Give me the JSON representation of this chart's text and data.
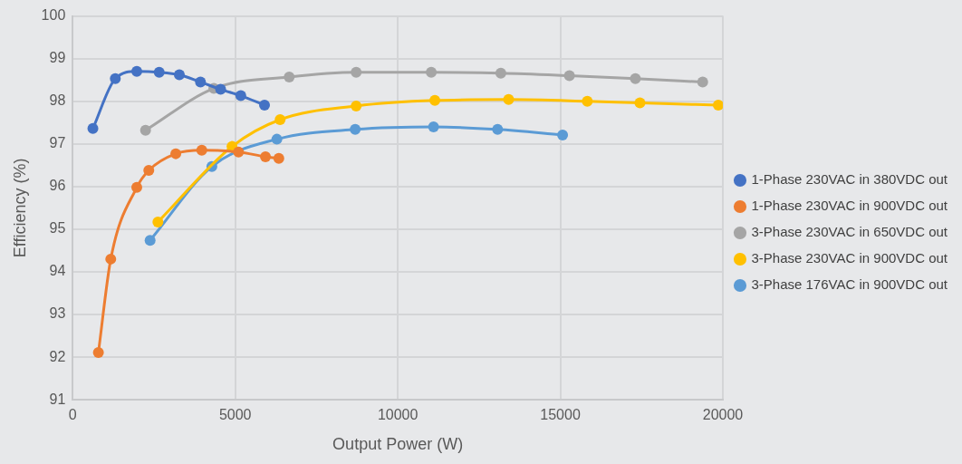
{
  "chart_data": {
    "type": "line",
    "xlabel": "Output Power (W)",
    "ylabel": "Efficiency (%)",
    "xlim": [
      0,
      20000
    ],
    "xticks": [
      0,
      5000,
      10000,
      15000,
      20000
    ],
    "ylim": [
      91,
      100
    ],
    "yticks": [
      91,
      92,
      93,
      94,
      95,
      96,
      97,
      98,
      99,
      100
    ],
    "grid": true,
    "legend": "right",
    "marker": "circle",
    "line_style": "solid",
    "series": [
      {
        "name": "1-Phase 230VAC in 380VDC out",
        "color": "#4472c4",
        "x": [
          620,
          1310,
          1970,
          2660,
          3280,
          3930,
          4550,
          5170,
          5900
        ],
        "values": [
          97.36,
          98.53,
          98.7,
          98.68,
          98.62,
          98.45,
          98.28,
          98.13,
          97.91
        ]
      },
      {
        "name": "1-Phase 230VAC in 900VDC out",
        "color": "#ed7d31",
        "x": [
          790,
          1170,
          1970,
          2340,
          3170,
          3970,
          5100,
          5930,
          6340
        ],
        "values": [
          92.11,
          94.3,
          95.98,
          96.38,
          96.77,
          96.85,
          96.81,
          96.7,
          96.66
        ]
      },
      {
        "name": "3-Phase 230VAC in 650VDC out",
        "color": "#a5a5a5",
        "x": [
          2240,
          4340,
          6660,
          8720,
          11030,
          13170,
          15280,
          17310,
          19380
        ],
        "values": [
          97.32,
          98.3,
          98.57,
          98.68,
          98.68,
          98.66,
          98.6,
          98.53,
          98.45
        ]
      },
      {
        "name": "3-Phase 230VAC in 900VDC out",
        "color": "#ffc000",
        "x": [
          2620,
          4900,
          6380,
          8720,
          11140,
          13410,
          15830,
          17450,
          19860
        ],
        "values": [
          95.17,
          96.94,
          97.57,
          97.89,
          98.02,
          98.04,
          98.0,
          97.96,
          97.91
        ]
      },
      {
        "name": "3-Phase 176VAC in 900VDC out",
        "color": "#5b9bd5",
        "x": [
          2380,
          4280,
          6280,
          8690,
          11100,
          13070,
          15070
        ],
        "values": [
          94.74,
          96.47,
          97.11,
          97.34,
          97.4,
          97.34,
          97.21
        ]
      }
    ]
  }
}
